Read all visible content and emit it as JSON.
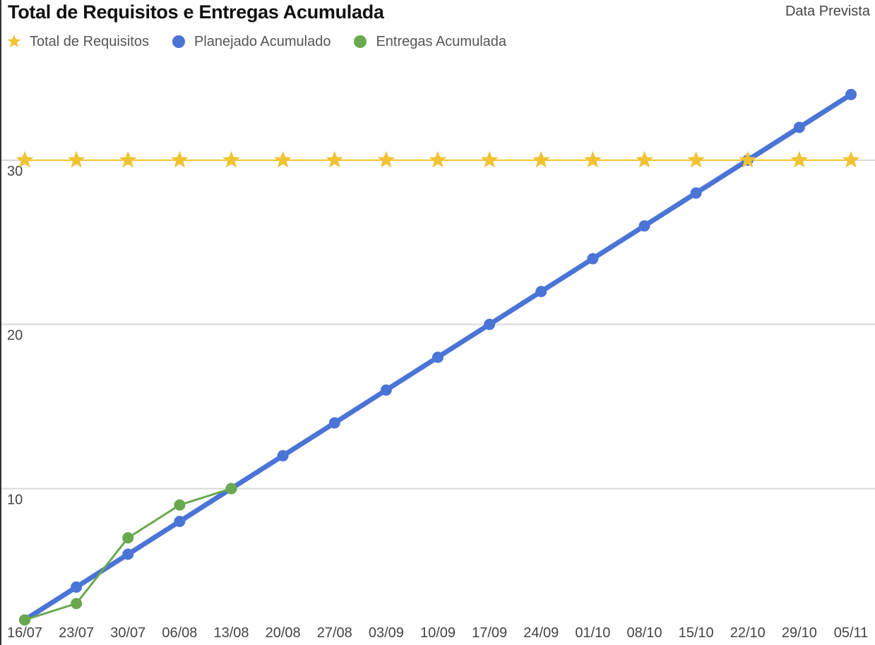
{
  "chart_data": {
    "type": "line",
    "title": "Total de Requisitos e Entregas Acumulada",
    "subtitle": "Data Prevista",
    "xlabel": "",
    "ylabel": "",
    "categories": [
      "16/07",
      "23/07",
      "30/07",
      "06/08",
      "13/08",
      "20/08",
      "27/08",
      "03/09",
      "10/09",
      "17/09",
      "24/09",
      "01/10",
      "08/10",
      "15/10",
      "22/10",
      "29/10",
      "05/11"
    ],
    "ylim": [
      0,
      35
    ],
    "yticks": [
      10,
      20,
      30
    ],
    "grid": true,
    "legend_position": "top-left",
    "series": [
      {
        "name": "Total de Requisitos",
        "marker": "star",
        "color": "#f1c232",
        "values": [
          30,
          30,
          30,
          30,
          30,
          30,
          30,
          30,
          30,
          30,
          30,
          30,
          30,
          30,
          30,
          30,
          30
        ]
      },
      {
        "name": "Planejado Acumulado",
        "marker": "circle",
        "color": "#4a74d6",
        "values": [
          2,
          4,
          6,
          8,
          10,
          12,
          14,
          16,
          18,
          20,
          22,
          24,
          26,
          28,
          30,
          32,
          34
        ]
      },
      {
        "name": "Entregas Acumulada",
        "marker": "circle",
        "color": "#6aa84f",
        "values": [
          2,
          3,
          7,
          9,
          10,
          null,
          null,
          null,
          null,
          null,
          null,
          null,
          null,
          null,
          null,
          null,
          null
        ]
      }
    ]
  }
}
